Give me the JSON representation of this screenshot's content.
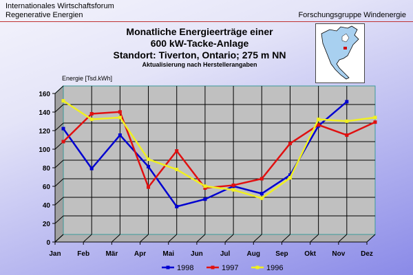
{
  "header": {
    "left_line1": "Internationales Wirtschaftsforum",
    "left_line2": "Regenerative Energien",
    "right": "Forschungsgruppe Windenergie"
  },
  "chart_data": {
    "type": "line",
    "title": "Monatliche Energieerträge einer",
    "title_line2": "600 kW-Tacke-Anlage",
    "title_line3": "Standort: Tiverton, Ontario; 275 m NN",
    "subtitle": "Aktualisierung nach Herstellerangaben",
    "ylabel": "Energie [Tsd.kWh]",
    "xlabel": "",
    "ylim": [
      0,
      160
    ],
    "yticks": [
      0,
      20,
      40,
      60,
      80,
      100,
      120,
      140,
      160
    ],
    "grid": true,
    "legend_position": "bottom",
    "categories": [
      "Jan",
      "Feb",
      "Mär",
      "Apr",
      "Mai",
      "Jun",
      "Jul",
      "Aug",
      "Sep",
      "Okt",
      "Nov",
      "Dez"
    ],
    "series": [
      {
        "name": "1998",
        "color": "#0000d0",
        "values": [
          114,
          71,
          107,
          73,
          30,
          38,
          52,
          44,
          64,
          117,
          143,
          null
        ]
      },
      {
        "name": "1997",
        "color": "#e01010",
        "values": [
          100,
          130,
          132,
          51,
          90,
          50,
          53,
          60,
          98,
          118,
          107,
          121
        ]
      },
      {
        "name": "1996",
        "color": "#f0f020",
        "values": [
          144,
          124,
          126,
          81,
          70,
          52,
          48,
          39,
          61,
          124,
          122,
          126
        ]
      }
    ]
  },
  "map": {
    "icon": "north-america-map",
    "land_color": "#a8d0f0",
    "marker_color": "#d00000"
  }
}
